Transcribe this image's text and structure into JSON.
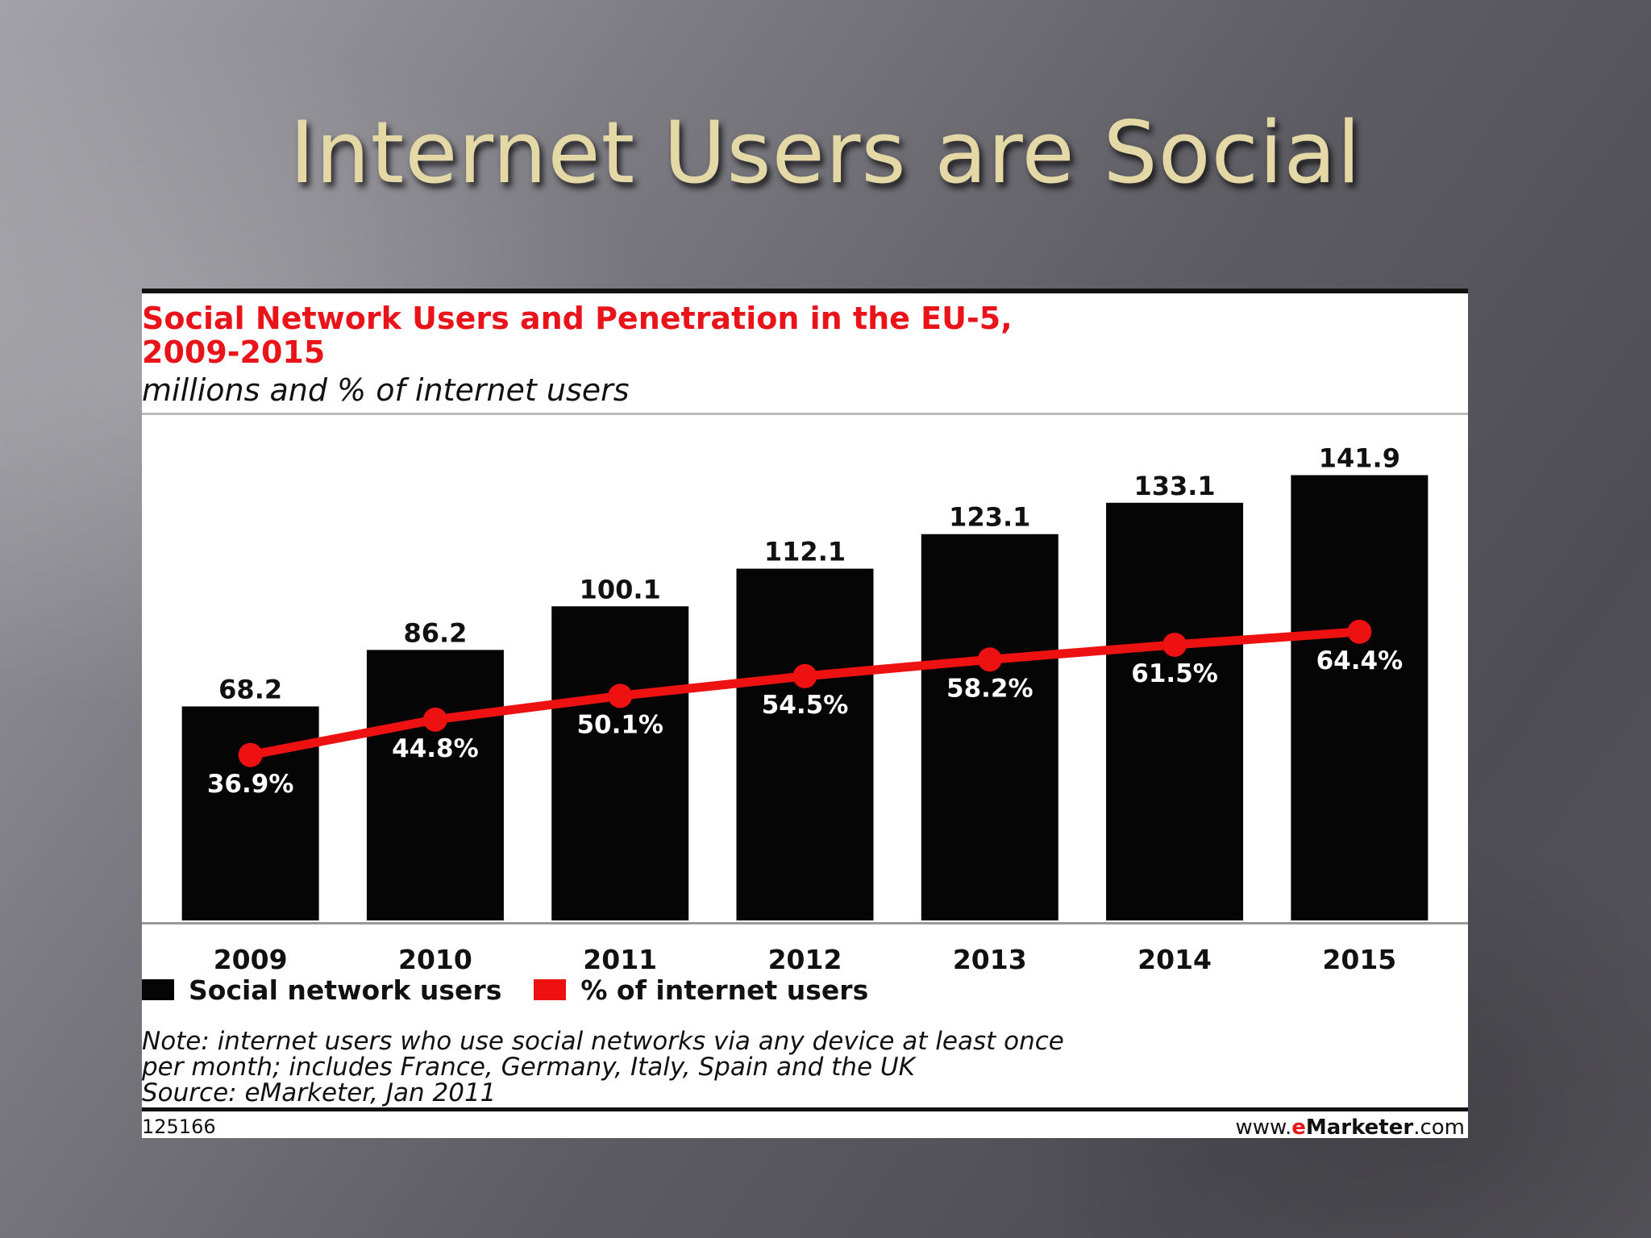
{
  "slide": {
    "title": "Internet Users are Social"
  },
  "colors": {
    "bars": "#050505",
    "line": "#ee1111",
    "title_accent": "#e8141a"
  },
  "chart_data": {
    "type": "bar",
    "title": "Social Network Users and Penetration in the EU-5,\n2009-2015",
    "subtitle": "millions and % of internet users",
    "categories": [
      "2009",
      "2010",
      "2011",
      "2012",
      "2013",
      "2014",
      "2015"
    ],
    "series": [
      {
        "name": "Social network users",
        "type": "bar",
        "values": [
          68.2,
          86.2,
          100.1,
          112.1,
          123.1,
          133.1,
          141.9
        ],
        "labels": [
          "68.2",
          "86.2",
          "100.1",
          "112.1",
          "123.1",
          "133.1",
          "141.9"
        ]
      },
      {
        "name": "% of internet users",
        "type": "line",
        "values": [
          36.9,
          44.8,
          50.1,
          54.5,
          58.2,
          61.5,
          64.4
        ],
        "labels": [
          "36.9%",
          "44.8%",
          "50.1%",
          "54.5%",
          "58.2%",
          "61.5%",
          "64.4%"
        ]
      }
    ],
    "ylim": [
      0,
      150
    ],
    "ylim_secondary": [
      0,
      105
    ],
    "grid": false,
    "legend": "bottom-left",
    "note": "Note: internet users who use social networks via any device at least once\nper month; includes France, Germany, Italy, Spain and the UK\nSource: eMarketer, Jan 2011",
    "footer_id": "125166",
    "footer_site": {
      "prefix": "www.",
      "e": "e",
      "brand": "Marketer",
      "suffix": ".com"
    }
  }
}
